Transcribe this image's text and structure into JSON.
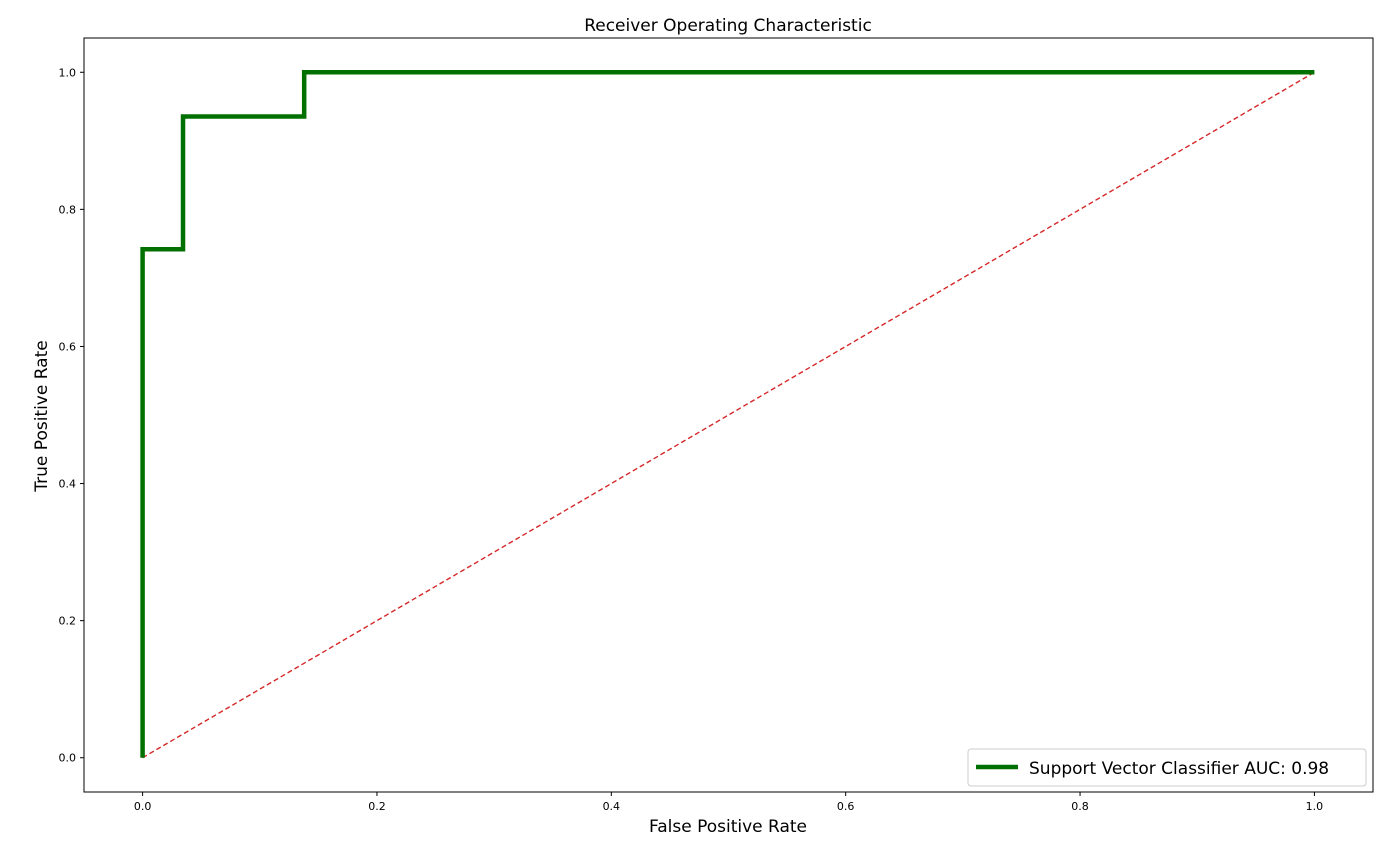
{
  "chart_data": {
    "type": "line",
    "title": "Receiver Operating Characteristic",
    "xlabel": "False Positive Rate",
    "ylabel": "True Positive Rate",
    "xlim": [
      -0.05,
      1.05
    ],
    "ylim": [
      -0.05,
      1.05
    ],
    "xticks": [
      0.0,
      0.2,
      0.4,
      0.6,
      0.8,
      1.0
    ],
    "yticks": [
      0.0,
      0.2,
      0.4,
      0.6,
      0.8,
      1.0
    ],
    "xtick_labels": [
      "0.0",
      "0.2",
      "0.4",
      "0.6",
      "0.8",
      "1.0"
    ],
    "ytick_labels": [
      "0.0",
      "0.2",
      "0.4",
      "0.6",
      "0.8",
      "1.0"
    ],
    "grid": false,
    "legend_position": "lower-right",
    "series": [
      {
        "name": "Support Vector Classifier AUC: 0.98",
        "color": "#007000",
        "style": "solid",
        "x": [
          0.0,
          0.0,
          0.0345,
          0.0345,
          0.1379,
          0.1379,
          1.0
        ],
        "y": [
          0.0,
          0.7419,
          0.7419,
          0.9355,
          0.9355,
          1.0,
          1.0
        ]
      },
      {
        "color": "#d62728",
        "style": "dashed",
        "x": [
          0.0,
          1.0
        ],
        "y": [
          0.0,
          1.0
        ]
      }
    ]
  }
}
